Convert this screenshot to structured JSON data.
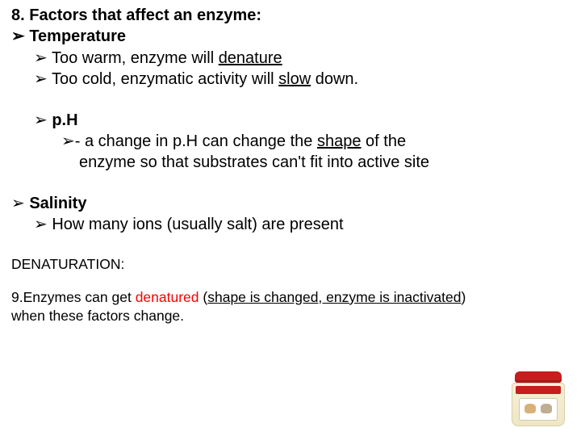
{
  "colors": {
    "text": "#000000",
    "background": "#ffffff",
    "accent_red": "#ff0000",
    "jar_lid": "#c41e1e",
    "jar_body_top": "#f8f1d8",
    "jar_body_bottom": "#efe6c6"
  },
  "typography": {
    "family": "Arial",
    "body_size_pt": 20,
    "small_size_pt": 17.5,
    "line_height": 1.32
  },
  "bullet_glyph": "➢",
  "content": {
    "heading": "8. Factors that affect an enzyme:",
    "temp_label": "Temperature",
    "temp_sub1_a": "Too warm, enzyme will ",
    "temp_sub1_u": "denature",
    "temp_sub2_a": "Too cold, enzymatic activity will ",
    "temp_sub2_u": "slow",
    "temp_sub2_b": " down.",
    "ph_label": "p.H",
    "ph_sub_a": "- a change in p.H can change the ",
    "ph_sub_u": "shape",
    "ph_sub_b": " of the",
    "ph_sub_line2": "enzyme so that substrates can't fit into active site",
    "salinity_label": "Salinity",
    "salinity_sub": "How many ions (usually salt) are present",
    "denat_heading": "DENATURATION:",
    "nine_a": "9.Enzymes can get ",
    "nine_red": "denatured",
    "nine_b": " (",
    "nine_u": "shape is changed, enzyme is inactivated",
    "nine_c": ")",
    "nine_line2": "when these factors change."
  },
  "image": {
    "semantic": "enzyme-supplement-jar",
    "position": "bottom-right"
  }
}
